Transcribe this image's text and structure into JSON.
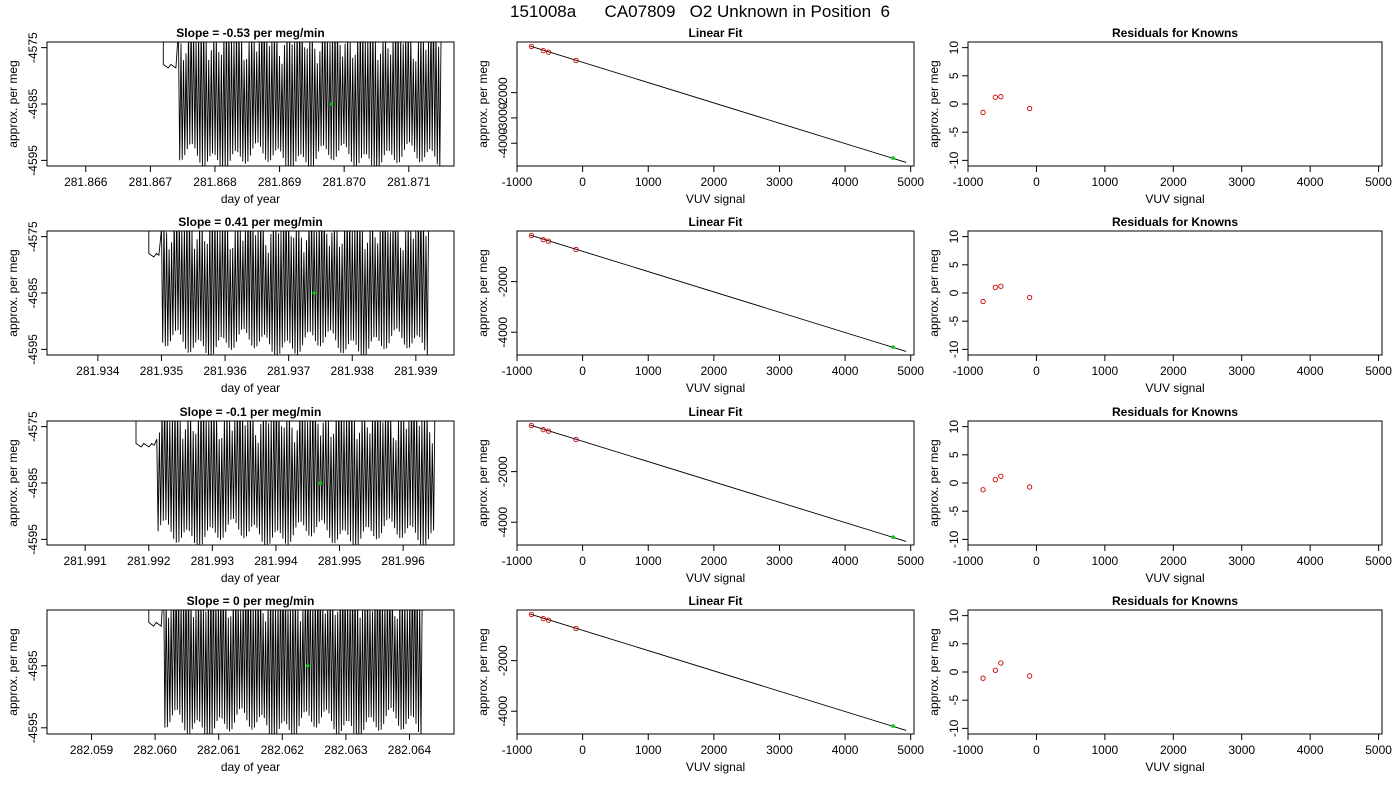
{
  "page_title": "151008a      CA07809   O2 Unknown in Position  6",
  "colors": {
    "trace": "#000000",
    "fit_line": "#000000",
    "known_point": "#cc0000",
    "unknown_point": "#00cc00",
    "frame": "#000000"
  },
  "chart_data": [
    {
      "type": "line",
      "row": 1,
      "col": 1,
      "title": "Slope =  -0.53  per meg/min",
      "xlabel": "day of year",
      "ylabel": "approx. per meg",
      "xlim": [
        281.8654,
        281.8717
      ],
      "ylim": [
        -4596,
        -4574
      ],
      "xticks": [
        "281.866",
        "281.867",
        "281.868",
        "281.869",
        "281.870",
        "281.871"
      ],
      "yticks": [
        "-4575",
        "-4585",
        "-4595"
      ],
      "trace": {
        "x_start": 281.8672,
        "x_end": 281.8715,
        "flat_until": 281.8674,
        "low": -4594.5,
        "high": -4577,
        "cycles": 110
      },
      "marker": {
        "x": 281.8698,
        "y": -4585
      }
    },
    {
      "type": "scatter",
      "row": 1,
      "col": 2,
      "title": "Linear Fit",
      "xlabel": "VUV signal",
      "ylabel": "approx. per meg",
      "xlim": [
        -1000,
        5050
      ],
      "ylim": [
        -4900,
        0
      ],
      "xticks": [
        "-1000",
        "0",
        "1000",
        "2000",
        "3000",
        "4000",
        "5000"
      ],
      "yticks": [
        "-2000",
        "-3000",
        "-4000"
      ],
      "known_points": [
        [
          -780,
          -180
        ],
        [
          -600,
          -340
        ],
        [
          -520,
          -400
        ],
        [
          -100,
          -730
        ]
      ],
      "unknown_point": [
        4730,
        -4585
      ],
      "fit_line": [
        [
          -800,
          -160
        ],
        [
          4930,
          -4760
        ]
      ]
    },
    {
      "type": "scatter",
      "row": 1,
      "col": 3,
      "title": "Residuals for Knowns",
      "xlabel": "VUV signal",
      "ylabel": "approx. per meg",
      "xlim": [
        -1000,
        5050
      ],
      "ylim": [
        -11,
        11
      ],
      "xticks": [
        "-1000",
        "0",
        "1000",
        "2000",
        "3000",
        "4000",
        "5000"
      ],
      "yticks": [
        "10",
        "5",
        "0",
        "-5",
        "-10"
      ],
      "points": [
        [
          -780,
          -1.5
        ],
        [
          -600,
          1.2
        ],
        [
          -520,
          1.3
        ],
        [
          -100,
          -0.8
        ]
      ]
    },
    {
      "type": "line",
      "row": 2,
      "col": 1,
      "title": "Slope =  0.41  per meg/min",
      "xlabel": "day of year",
      "ylabel": "approx. per meg",
      "xlim": [
        281.9332,
        281.9396
      ],
      "ylim": [
        -4596,
        -4574
      ],
      "xticks": [
        "281.934",
        "281.935",
        "281.936",
        "281.937",
        "281.938",
        "281.939"
      ],
      "yticks": [
        "-4575",
        "-4585",
        "-4595"
      ],
      "trace": {
        "x_start": 281.9348,
        "x_end": 281.9392,
        "flat_until": 281.935,
        "low": -4594,
        "high": -4577,
        "cycles": 110
      },
      "marker": {
        "x": 281.9374,
        "y": -4585
      }
    },
    {
      "type": "scatter",
      "row": 2,
      "col": 2,
      "title": "Linear Fit",
      "xlabel": "VUV signal",
      "ylabel": "approx. per meg",
      "xlim": [
        -1000,
        5050
      ],
      "ylim": [
        -4900,
        0
      ],
      "xticks": [
        "-1000",
        "0",
        "1000",
        "2000",
        "3000",
        "4000",
        "5000"
      ],
      "yticks": [
        "-2000",
        "-4000"
      ],
      "known_points": [
        [
          -780,
          -180
        ],
        [
          -600,
          -340
        ],
        [
          -520,
          -400
        ],
        [
          -100,
          -730
        ]
      ],
      "unknown_point": [
        4730,
        -4585
      ],
      "fit_line": [
        [
          -800,
          -160
        ],
        [
          4930,
          -4760
        ]
      ]
    },
    {
      "type": "scatter",
      "row": 2,
      "col": 3,
      "title": "Residuals for Knowns",
      "xlabel": "VUV signal",
      "ylabel": "approx. per meg",
      "xlim": [
        -1000,
        5050
      ],
      "ylim": [
        -11,
        11
      ],
      "xticks": [
        "-1000",
        "0",
        "1000",
        "2000",
        "3000",
        "4000",
        "5000"
      ],
      "yticks": [
        "10",
        "5",
        "0",
        "-5",
        "-10"
      ],
      "points": [
        [
          -780,
          -1.5
        ],
        [
          -600,
          1.0
        ],
        [
          -520,
          1.2
        ],
        [
          -100,
          -0.8
        ]
      ]
    },
    {
      "type": "line",
      "row": 3,
      "col": 1,
      "title": "Slope =  -0.1  per meg/min",
      "xlabel": "day of year",
      "ylabel": "approx. per meg",
      "xlim": [
        281.9904,
        281.9968
      ],
      "ylim": [
        -4596,
        -4574
      ],
      "xticks": [
        "281.991",
        "281.992",
        "281.993",
        "281.994",
        "281.995",
        "281.996"
      ],
      "yticks": [
        "-4575",
        "-4585",
        "-4595"
      ],
      "trace": {
        "x_start": 281.9918,
        "x_end": 281.9965,
        "flat_until": 281.9921,
        "low": -4594,
        "high": -4577,
        "cycles": 115
      },
      "marker": {
        "x": 281.9947,
        "y": -4585
      }
    },
    {
      "type": "scatter",
      "row": 3,
      "col": 2,
      "title": "Linear Fit",
      "xlabel": "VUV signal",
      "ylabel": "approx. per meg",
      "xlim": [
        -1000,
        5050
      ],
      "ylim": [
        -4900,
        0
      ],
      "xticks": [
        "-1000",
        "0",
        "1000",
        "2000",
        "3000",
        "4000",
        "5000"
      ],
      "yticks": [
        "-2000",
        "-4000"
      ],
      "known_points": [
        [
          -780,
          -180
        ],
        [
          -600,
          -340
        ],
        [
          -520,
          -400
        ],
        [
          -100,
          -730
        ]
      ],
      "unknown_point": [
        4730,
        -4585
      ],
      "fit_line": [
        [
          -800,
          -160
        ],
        [
          4930,
          -4760
        ]
      ]
    },
    {
      "type": "scatter",
      "row": 3,
      "col": 3,
      "title": "Residuals for Knowns",
      "xlabel": "VUV signal",
      "ylabel": "approx. per meg",
      "xlim": [
        -1000,
        5050
      ],
      "ylim": [
        -11,
        11
      ],
      "xticks": [
        "-1000",
        "0",
        "1000",
        "2000",
        "3000",
        "4000",
        "5000"
      ],
      "yticks": [
        "10",
        "5",
        "0",
        "-5",
        "-10"
      ],
      "points": [
        [
          -780,
          -1.2
        ],
        [
          -600,
          0.6
        ],
        [
          -520,
          1.2
        ],
        [
          -100,
          -0.7
        ]
      ]
    },
    {
      "type": "line",
      "row": 4,
      "col": 1,
      "title": "Slope =  0  per meg/min",
      "xlabel": "day of year",
      "ylabel": "approx. per meg",
      "xlim": [
        282.0583,
        282.0647
      ],
      "ylim": [
        -4596,
        -4576
      ],
      "xticks": [
        "282.059",
        "282.060",
        "282.061",
        "282.062",
        "282.063",
        "282.064"
      ],
      "yticks": [
        "-4585",
        "-4595"
      ],
      "trace": {
        "x_start": 282.0599,
        "x_end": 282.0642,
        "flat_until": 282.0601,
        "low": -4594.5,
        "high": -4577,
        "cycles": 110
      },
      "marker": {
        "x": 282.0624,
        "y": -4585
      }
    },
    {
      "type": "scatter",
      "row": 4,
      "col": 2,
      "title": "Linear Fit",
      "xlabel": "VUV signal",
      "ylabel": "approx. per meg",
      "xlim": [
        -1000,
        5050
      ],
      "ylim": [
        -4900,
        0
      ],
      "xticks": [
        "-1000",
        "0",
        "1000",
        "2000",
        "3000",
        "4000",
        "5000"
      ],
      "yticks": [
        "-2000",
        "-4000"
      ],
      "known_points": [
        [
          -780,
          -180
        ],
        [
          -600,
          -340
        ],
        [
          -520,
          -400
        ],
        [
          -100,
          -730
        ]
      ],
      "unknown_point": [
        4730,
        -4585
      ],
      "fit_line": [
        [
          -800,
          -160
        ],
        [
          4930,
          -4760
        ]
      ]
    },
    {
      "type": "scatter",
      "row": 4,
      "col": 3,
      "title": "Residuals for Knowns",
      "xlabel": "VUV signal",
      "ylabel": "approx. per meg",
      "xlim": [
        -1000,
        5050
      ],
      "ylim": [
        -11,
        11
      ],
      "xticks": [
        "-1000",
        "0",
        "1000",
        "2000",
        "3000",
        "4000",
        "5000"
      ],
      "yticks": [
        "10",
        "5",
        "0",
        "-5",
        "-10"
      ],
      "points": [
        [
          -780,
          -1.1
        ],
        [
          -600,
          0.3
        ],
        [
          -520,
          1.6
        ],
        [
          -100,
          -0.7
        ]
      ]
    }
  ]
}
